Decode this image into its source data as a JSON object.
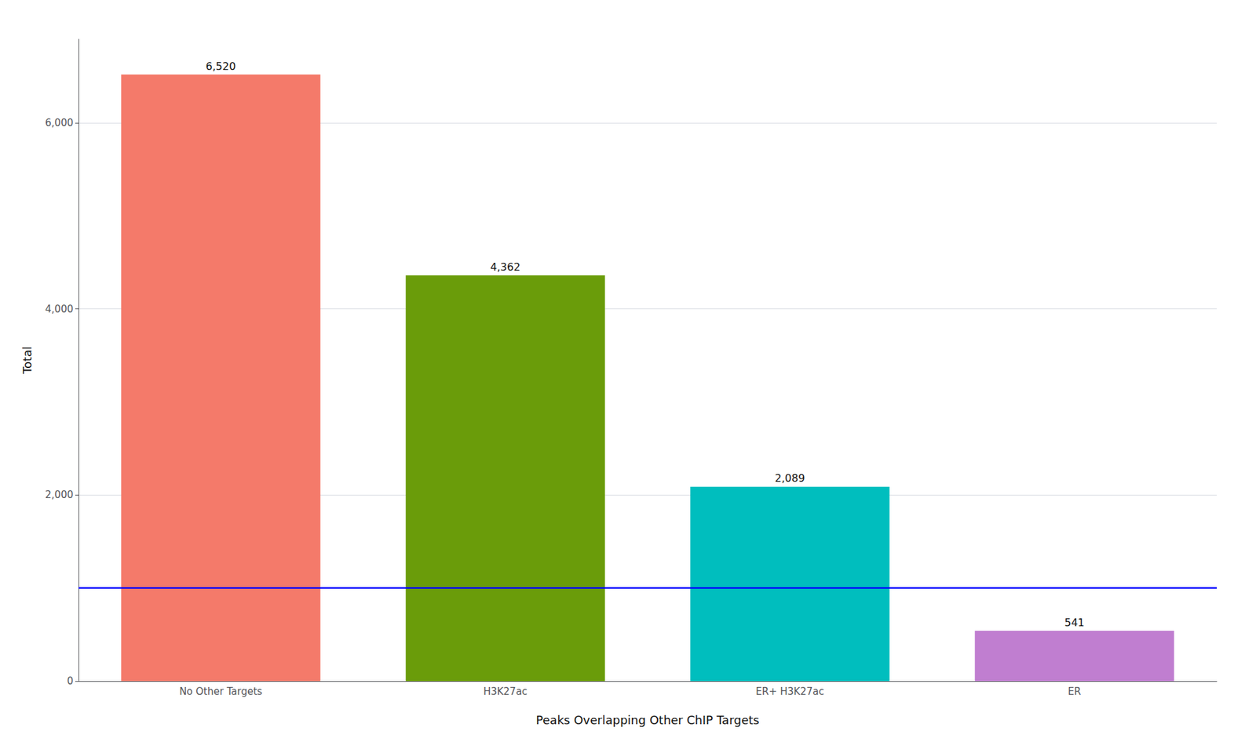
{
  "chart_data": {
    "type": "bar",
    "categories": [
      "No Other Targets",
      "H3K27ac",
      "ER+ H3K27ac",
      "ER"
    ],
    "values": [
      6520,
      4362,
      2089,
      541
    ],
    "value_labels": [
      "6,520",
      "4,362",
      "2,089",
      "541"
    ],
    "data_labels": true,
    "colors": [
      "#F47A6A",
      "#6A9C0A",
      "#00BEBE",
      "#C07ED0"
    ],
    "xlabel": "Peaks Overlapping Other ChIP Targets",
    "ylabel": "Total",
    "ylim": [
      0,
      6900
    ],
    "yticks": [
      0,
      {
        "value": 2000,
        "label": "2,000"
      },
      {
        "value": 4000,
        "label": "4,000"
      },
      {
        "value": 6000,
        "label": "6,000"
      }
    ],
    "reference_line": {
      "value": 1000,
      "color": "blue"
    },
    "grid": true
  }
}
